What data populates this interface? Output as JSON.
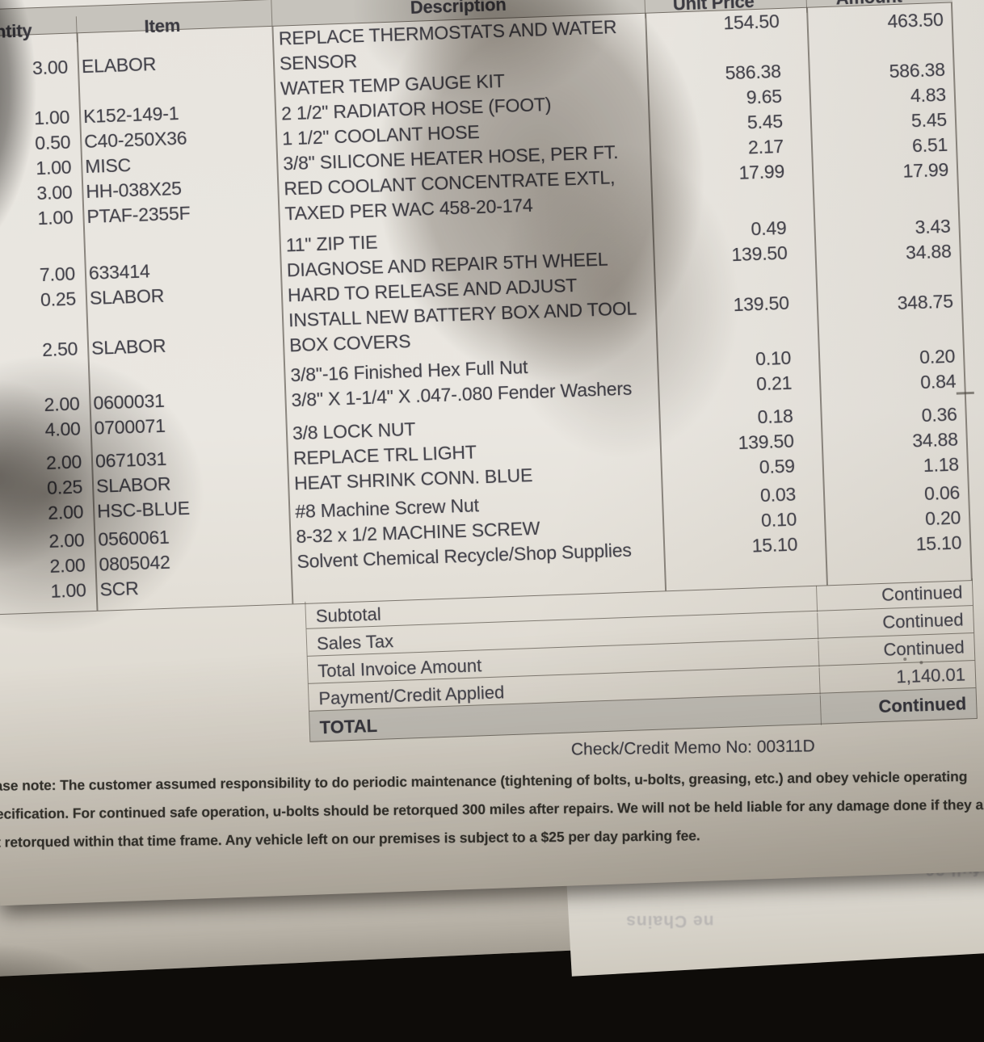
{
  "document_type": "photographed repair invoice page",
  "table": {
    "headers": {
      "quantity": "Quantity",
      "item": "Item",
      "description": "Description",
      "unit_price": "Unit Price",
      "amount": "Amount"
    },
    "items": [
      {
        "qty": "3.00",
        "item": "ELABOR",
        "desc": "REPLACE THERMOSTATS AND WATER\nSENSOR",
        "unit": "154.50",
        "amount": "463.50"
      },
      {
        "qty": "1.00",
        "item": "K152-149-1",
        "desc": "WATER TEMP GAUGE KIT",
        "unit": "586.38",
        "amount": "586.38"
      },
      {
        "qty": "0.50",
        "item": "C40-250X36",
        "desc": "2 1/2\" RADIATOR HOSE (FOOT)",
        "unit": "9.65",
        "amount": "4.83"
      },
      {
        "qty": "1.00",
        "item": "MISC",
        "desc": "1 1/2\" COOLANT HOSE",
        "unit": "5.45",
        "amount": "5.45"
      },
      {
        "qty": "3.00",
        "item": "HH-038X25",
        "desc": "3/8\" SILICONE HEATER HOSE, PER FT.",
        "unit": "2.17",
        "amount": "6.51"
      },
      {
        "qty": "1.00",
        "item": "PTAF-2355F",
        "desc": "RED COOLANT CONCENTRATE EXTL,\nTAXED PER WAC 458-20-174",
        "unit": "17.99",
        "amount": "17.99"
      },
      {
        "qty": "7.00",
        "item": "633414",
        "desc": "11\" ZIP TIE",
        "unit": "0.49",
        "amount": "3.43"
      },
      {
        "qty": "0.25",
        "item": "SLABOR",
        "desc": "DIAGNOSE AND REPAIR 5TH WHEEL\nHARD TO RELEASE AND ADJUST",
        "unit": "139.50",
        "amount": "34.88"
      },
      {
        "qty": "2.50",
        "item": "SLABOR",
        "desc": "INSTALL NEW BATTERY BOX AND TOOL\nBOX COVERS",
        "unit": "139.50",
        "amount": "348.75"
      },
      {
        "qty": "2.00",
        "item": "0600031",
        "desc": "3/8\"-16 Finished Hex Full Nut",
        "unit": "0.10",
        "amount": "0.20"
      },
      {
        "qty": "4.00",
        "item": "0700071",
        "desc": "3/8\" X 1-1/4\" X .047-.080 Fender Washers",
        "unit": "0.21",
        "amount": "0.84"
      },
      {
        "qty": "2.00",
        "item": "0671031",
        "desc": "3/8 LOCK NUT",
        "unit": "0.18",
        "amount": "0.36"
      },
      {
        "qty": "0.25",
        "item": "SLABOR",
        "desc": "REPLACE TRL LIGHT",
        "unit": "139.50",
        "amount": "34.88"
      },
      {
        "qty": "2.00",
        "item": "HSC-BLUE",
        "desc": "HEAT SHRINK CONN. BLUE",
        "unit": "0.59",
        "amount": "1.18"
      },
      {
        "qty": "2.00",
        "item": "0560061",
        "desc": "#8 Machine Screw Nut",
        "unit": "0.03",
        "amount": "0.06"
      },
      {
        "qty": "2.00",
        "item": "0805042",
        "desc": "8-32 x 1/2 MACHINE SCREW",
        "unit": "0.10",
        "amount": "0.20"
      },
      {
        "qty": "1.00",
        "item": "SCR",
        "desc": "Solvent Chemical Recycle/Shop Supplies",
        "unit": "15.10",
        "amount": "15.10"
      }
    ]
  },
  "summary": {
    "rows": [
      {
        "label": "Subtotal",
        "value": "Continued"
      },
      {
        "label": "Sales Tax",
        "value": "Continued"
      },
      {
        "label": "Total Invoice Amount",
        "value": "Continued"
      },
      {
        "label": "Payment/Credit Applied",
        "value": "1,140.01"
      },
      {
        "label": "TOTAL",
        "value": "Continued"
      }
    ]
  },
  "memo_line": "Check/Credit Memo No: 00311D",
  "footer_note": {
    "lines": [
      "ease note: The customer assumed responsibility to do periodic maintenance (tightening of bolts, u-bolts, greasing, etc.) and obey vehicle operating",
      "pecification. For continued safe operation, u-bolts should be retorqued 300 miles after repairs. We will not be held liable for any damage done if they are",
      "ot retorqued within that time frame. Any vehicle left on our premises is subject to a $25 per day parking fee."
    ]
  },
  "ghost_fragments": {
    "a": "a full 30",
    "b": "ne Chains"
  },
  "colors": {
    "paper": "#e8e5df",
    "ink": "#43424a",
    "header_fill": "#c6c3bc",
    "total_fill": "#c3c0b8",
    "background": "#0e0c09"
  }
}
